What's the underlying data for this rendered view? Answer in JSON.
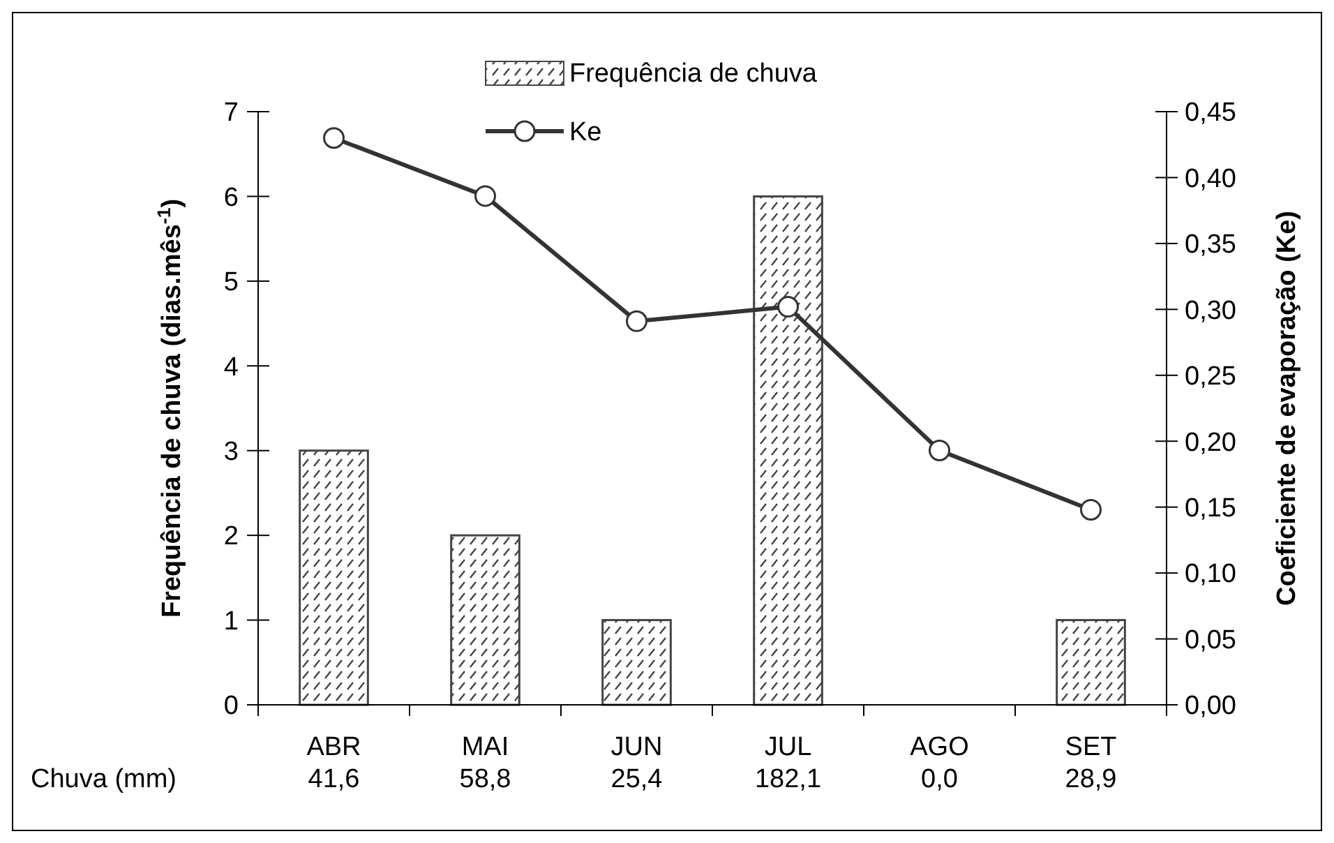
{
  "chart_data": {
    "type": "bar",
    "categories": [
      "ABR",
      "MAI",
      "JUN",
      "JUL",
      "AGO",
      "SET"
    ],
    "ylabel": "Frequência de chuva (dias.mês$^{-1}$)",
    "y2label": "Coeficiente de evaporação (Ke)",
    "ylim": [
      0,
      7
    ],
    "yticks": [
      0,
      1,
      2,
      3,
      4,
      5,
      6,
      7
    ],
    "y2lim": [
      0,
      0.45
    ],
    "y2ticks": [
      {
        "value": 0,
        "label": "0,00"
      },
      {
        "value": 0.05,
        "label": "0,05"
      },
      {
        "value": 0.1,
        "label": "0,10"
      },
      {
        "value": 0.15,
        "label": "0,15"
      },
      {
        "value": 0.2,
        "label": "0,20"
      },
      {
        "value": 0.25,
        "label": "0,25"
      },
      {
        "value": 0.3,
        "label": "0,30"
      },
      {
        "value": 0.35,
        "label": "0,35"
      },
      {
        "value": 0.4,
        "label": "0,40"
      },
      {
        "value": 0.45,
        "label": "0,45"
      }
    ],
    "series": [
      {
        "name": "Frequência de chuva",
        "color": "#444444",
        "values": [
          3,
          2,
          1,
          6,
          0,
          1
        ]
      },
      {
        "name": "Ke",
        "type": "line",
        "axis": "y2",
        "color": "#333333",
        "marker": "circle",
        "values": [
          0.43,
          0.386,
          0.291,
          0.302,
          0.193,
          0.148
        ]
      }
    ],
    "annotations": [
      "Chuva (mm)",
      "41,6",
      "58,8",
      "25,4",
      "182,1",
      "0,0",
      "28,9"
    ],
    "legend": "top",
    "grid": false
  }
}
